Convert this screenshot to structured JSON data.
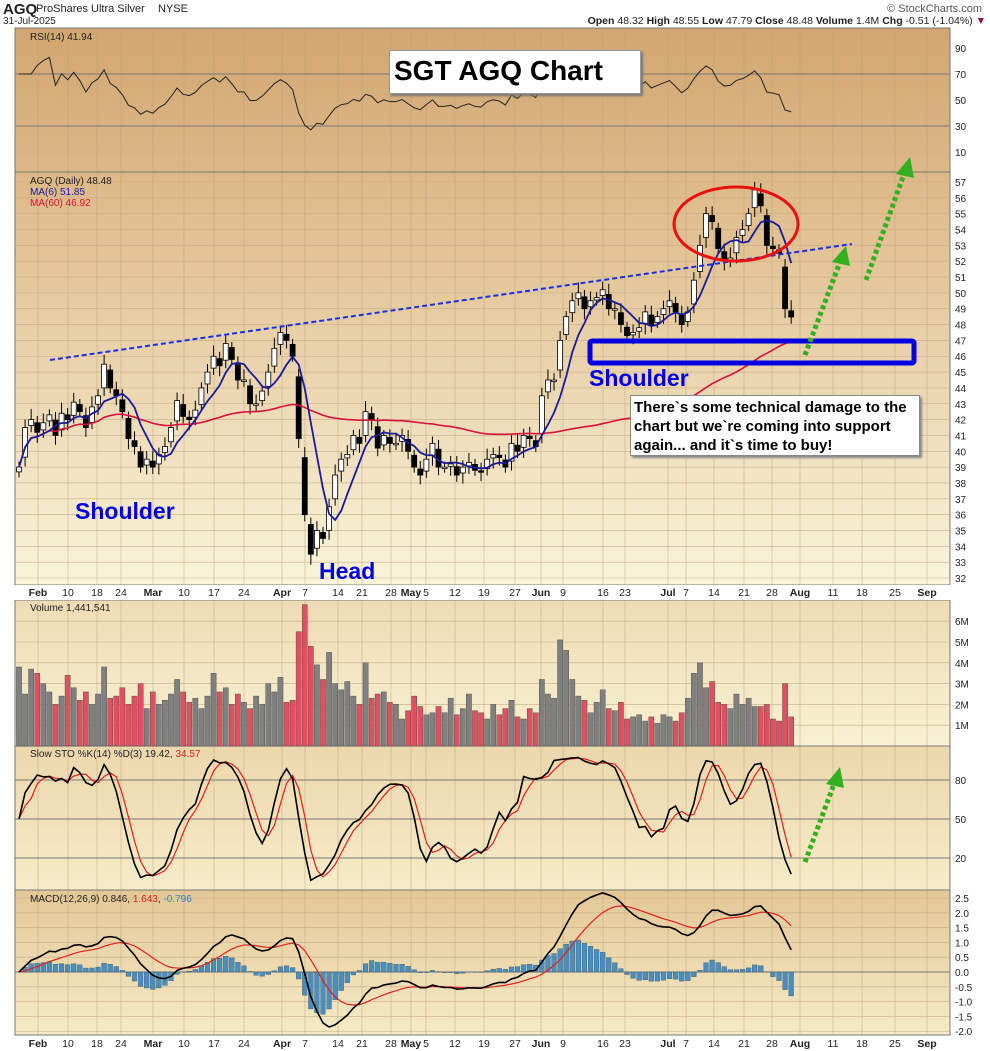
{
  "header": {
    "symbol": "AGQ",
    "name": "ProShares Ultra Silver",
    "exchange": "NYSE",
    "date": "31-Jul-2025",
    "copyright": "© StockCharts.com",
    "quote": {
      "open_label": "Open",
      "open": "48.32",
      "high_label": "High",
      "high": "48.55",
      "low_label": "Low",
      "low": "47.79",
      "close_label": "Close",
      "close": "48.48",
      "volume_label": "Volume",
      "volume": "1.4M",
      "chg_label": "Chg",
      "chg": "-0.51 (-1.04%)",
      "down_arrow": "▼"
    }
  },
  "annotations": {
    "title": "SGT AGQ Chart",
    "left_shoulder": "Shoulder",
    "head": "Head",
    "right_shoulder": "Shoulder",
    "note_lines": [
      "There`s some technical damage to the",
      "chart but we`re coming into support",
      "again... and it`s time to buy!"
    ]
  },
  "colors": {
    "ma6": "#1a1a9c",
    "ma60": "#d8103a",
    "annotation_blue": "#0000e0",
    "circle": "#e81010",
    "arrow": "#33b020",
    "vol_up": "#808080",
    "vol_down": "#e05060",
    "macd_hist": "#4a8ec0"
  },
  "chart_data": [
    {
      "type": "line",
      "panel": "RSI",
      "legend": "RSI(14) 41.94",
      "yticks": [
        90,
        70,
        50,
        30,
        10
      ],
      "ylim": [
        0,
        100
      ]
    },
    {
      "type": "candlestick",
      "panel": "price",
      "legend": {
        "main": "AGQ (Daily) 48.48",
        "ma6": "MA(6) 51.85",
        "ma60": "MA(60) 46.92"
      },
      "yticks": [
        57,
        56,
        55,
        54,
        53,
        52,
        51,
        50,
        49,
        48,
        47,
        46,
        45,
        44,
        43,
        42,
        41,
        40,
        39,
        38,
        37,
        36,
        35,
        34,
        33,
        32
      ],
      "ylim": [
        31.6,
        57.6
      ],
      "close": [
        39.0,
        41.5,
        42.0,
        41.2,
        41.8,
        42.3,
        41.0,
        42.4,
        42.0,
        43.1,
        42.5,
        41.5,
        42.8,
        43.5,
        45.5,
        44.0,
        43.5,
        42.5,
        40.8,
        40.3,
        39.0,
        39.5,
        39.0,
        39.8,
        40.3,
        41.5,
        43.2,
        42.2,
        42.0,
        42.6,
        44.0,
        45.0,
        46.0,
        45.4,
        46.8,
        45.8,
        44.5,
        44.5,
        43.0,
        43.0,
        43.8,
        45.0,
        46.5,
        47.5,
        47.0,
        46.0,
        40.8,
        36.0,
        33.5,
        35.0,
        34.5,
        36.5,
        38.5,
        39.5,
        39.8,
        41.0,
        40.5,
        42.5,
        42.0,
        40.2,
        41.0,
        40.5,
        40.5,
        41.0,
        40.0,
        39.0,
        38.5,
        39.5,
        40.5,
        39.0,
        39.0,
        39.2,
        38.5,
        39.0,
        39.3,
        38.8,
        38.7,
        39.5,
        39.8,
        39.6,
        39.0,
        40.5,
        40.0,
        41.0,
        40.8,
        40.3,
        43.5,
        44.5,
        44.5,
        47.0,
        48.5,
        49.5,
        50.0,
        49.0,
        49.5,
        49.7,
        50.2,
        49.0,
        49.0,
        48.0,
        47.3,
        47.5,
        47.8,
        48.8,
        48.0,
        48.5,
        49.0,
        49.5,
        48.8,
        48.0,
        48.8,
        50.8,
        53.0,
        55.0,
        54.5,
        52.8,
        52.0,
        52.2,
        53.5,
        54.0,
        55.0,
        56.5,
        55.5,
        53.0,
        52.8,
        52.5,
        49.0,
        48.48
      ]
    },
    {
      "type": "bar",
      "panel": "volume",
      "legend": "Volume 1,441,541",
      "unit": "M",
      "yticks": [
        "6M",
        "5M",
        "4M",
        "3M",
        "2M",
        "1M"
      ],
      "values": [
        3.8,
        2.5,
        3.7,
        3.5,
        3.0,
        2.6,
        2.0,
        2.4,
        3.4,
        2.8,
        2.2,
        2.6,
        2.0,
        2.5,
        3.8,
        2.3,
        2.4,
        2.8,
        2.0,
        2.4,
        3.0,
        1.8,
        2.6,
        2.0,
        2.2,
        2.5,
        3.2,
        2.6,
        2.1,
        2.3,
        1.8,
        2.4,
        3.5,
        2.6,
        2.8,
        2.0,
        2.5,
        2.1,
        1.8,
        2.4,
        2.0,
        3.0,
        2.6,
        3.3,
        2.1,
        2.2,
        5.5,
        6.8,
        4.8,
        3.9,
        3.2,
        4.5,
        3.0,
        2.7,
        3.1,
        2.4,
        2.0,
        4.0,
        2.3,
        2.5,
        2.6,
        2.1,
        2.0,
        1.3,
        1.7,
        2.4,
        1.9,
        1.5,
        1.6,
        1.9,
        1.6,
        2.3,
        1.5,
        1.8,
        2.5,
        1.7,
        1.6,
        1.3,
        2.0,
        1.5,
        1.8,
        2.2,
        1.4,
        1.3,
        1.8,
        1.6,
        3.2,
        2.5,
        2.3,
        5.1,
        4.6,
        3.2,
        2.4,
        2.2,
        1.6,
        2.1,
        2.7,
        1.8,
        1.7,
        2.1,
        1.3,
        1.4,
        1.5,
        1.2,
        1.4,
        1.1,
        1.5,
        1.4,
        1.2,
        1.6,
        2.3,
        3.5,
        4.0,
        2.8,
        3.1,
        2.1,
        2.0,
        1.8,
        2.5,
        2.0,
        2.3,
        1.9,
        1.9,
        2.0,
        1.3,
        1.2,
        3.0,
        1.4
      ]
    },
    {
      "type": "line",
      "panel": "slow-stochastic",
      "legend_prefix": "Slow STO %K(14) %D(3) 19.42, ",
      "legend_d": "34.57",
      "yticks": [
        80,
        50,
        20
      ]
    },
    {
      "type": "line",
      "panel": "MACD",
      "legend_prefix": "MACD(12,26,9) 0.846, ",
      "legend_signal": "1.643",
      "legend_sep": ", ",
      "legend_hist": "-0.796",
      "yticks": [
        "2.5",
        "2.0",
        "1.5",
        "1.0",
        "0.5",
        "0.0",
        "-0.5",
        "-1.0",
        "-1.5",
        "-2.0"
      ],
      "ylim": [
        -2.2,
        2.7
      ]
    },
    {
      "xticks": [
        "Feb",
        "10",
        "18",
        "24",
        "Mar",
        "10",
        "17",
        "24",
        "Apr",
        "7",
        "14",
        "21",
        "28",
        "May",
        "5",
        "12",
        "19",
        "27",
        "Jun",
        "9",
        "16",
        "23",
        "Jul",
        "7",
        "14",
        "21",
        "28",
        "Aug",
        "11",
        "18",
        "25",
        "Sep"
      ]
    }
  ]
}
